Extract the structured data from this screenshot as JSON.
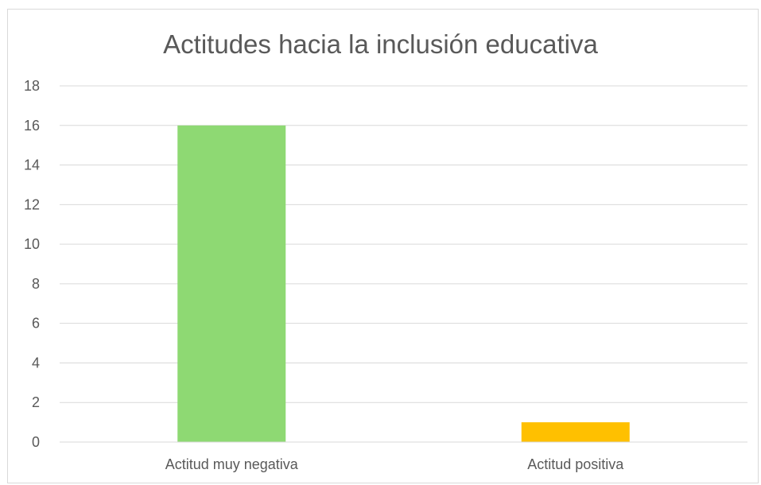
{
  "chart_data": {
    "type": "bar",
    "title": "Actitudes hacia la inclusión educativa",
    "categories": [
      "Actitud muy negativa",
      "Actitud positiva"
    ],
    "values": [
      16,
      1
    ],
    "colors": [
      "#8ed973",
      "#ffc000"
    ],
    "ylim": [
      0,
      18
    ],
    "yticks": [
      0,
      2,
      4,
      6,
      8,
      10,
      12,
      14,
      16,
      18
    ],
    "grid": true,
    "legend": "none",
    "xlabel": "",
    "ylabel": ""
  }
}
